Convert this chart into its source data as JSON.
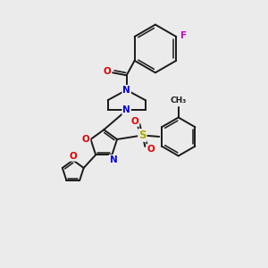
{
  "background_color": "#ebebeb",
  "bond_color": "#1a1a1a",
  "atom_colors": {
    "N": "#0000ee",
    "O": "#dd0000",
    "F": "#cc00cc",
    "S": "#aaaa00",
    "C": "#1a1a1a"
  },
  "figsize": [
    3.0,
    3.0
  ],
  "dpi": 100,
  "xlim": [
    0,
    10
  ],
  "ylim": [
    0,
    10
  ]
}
